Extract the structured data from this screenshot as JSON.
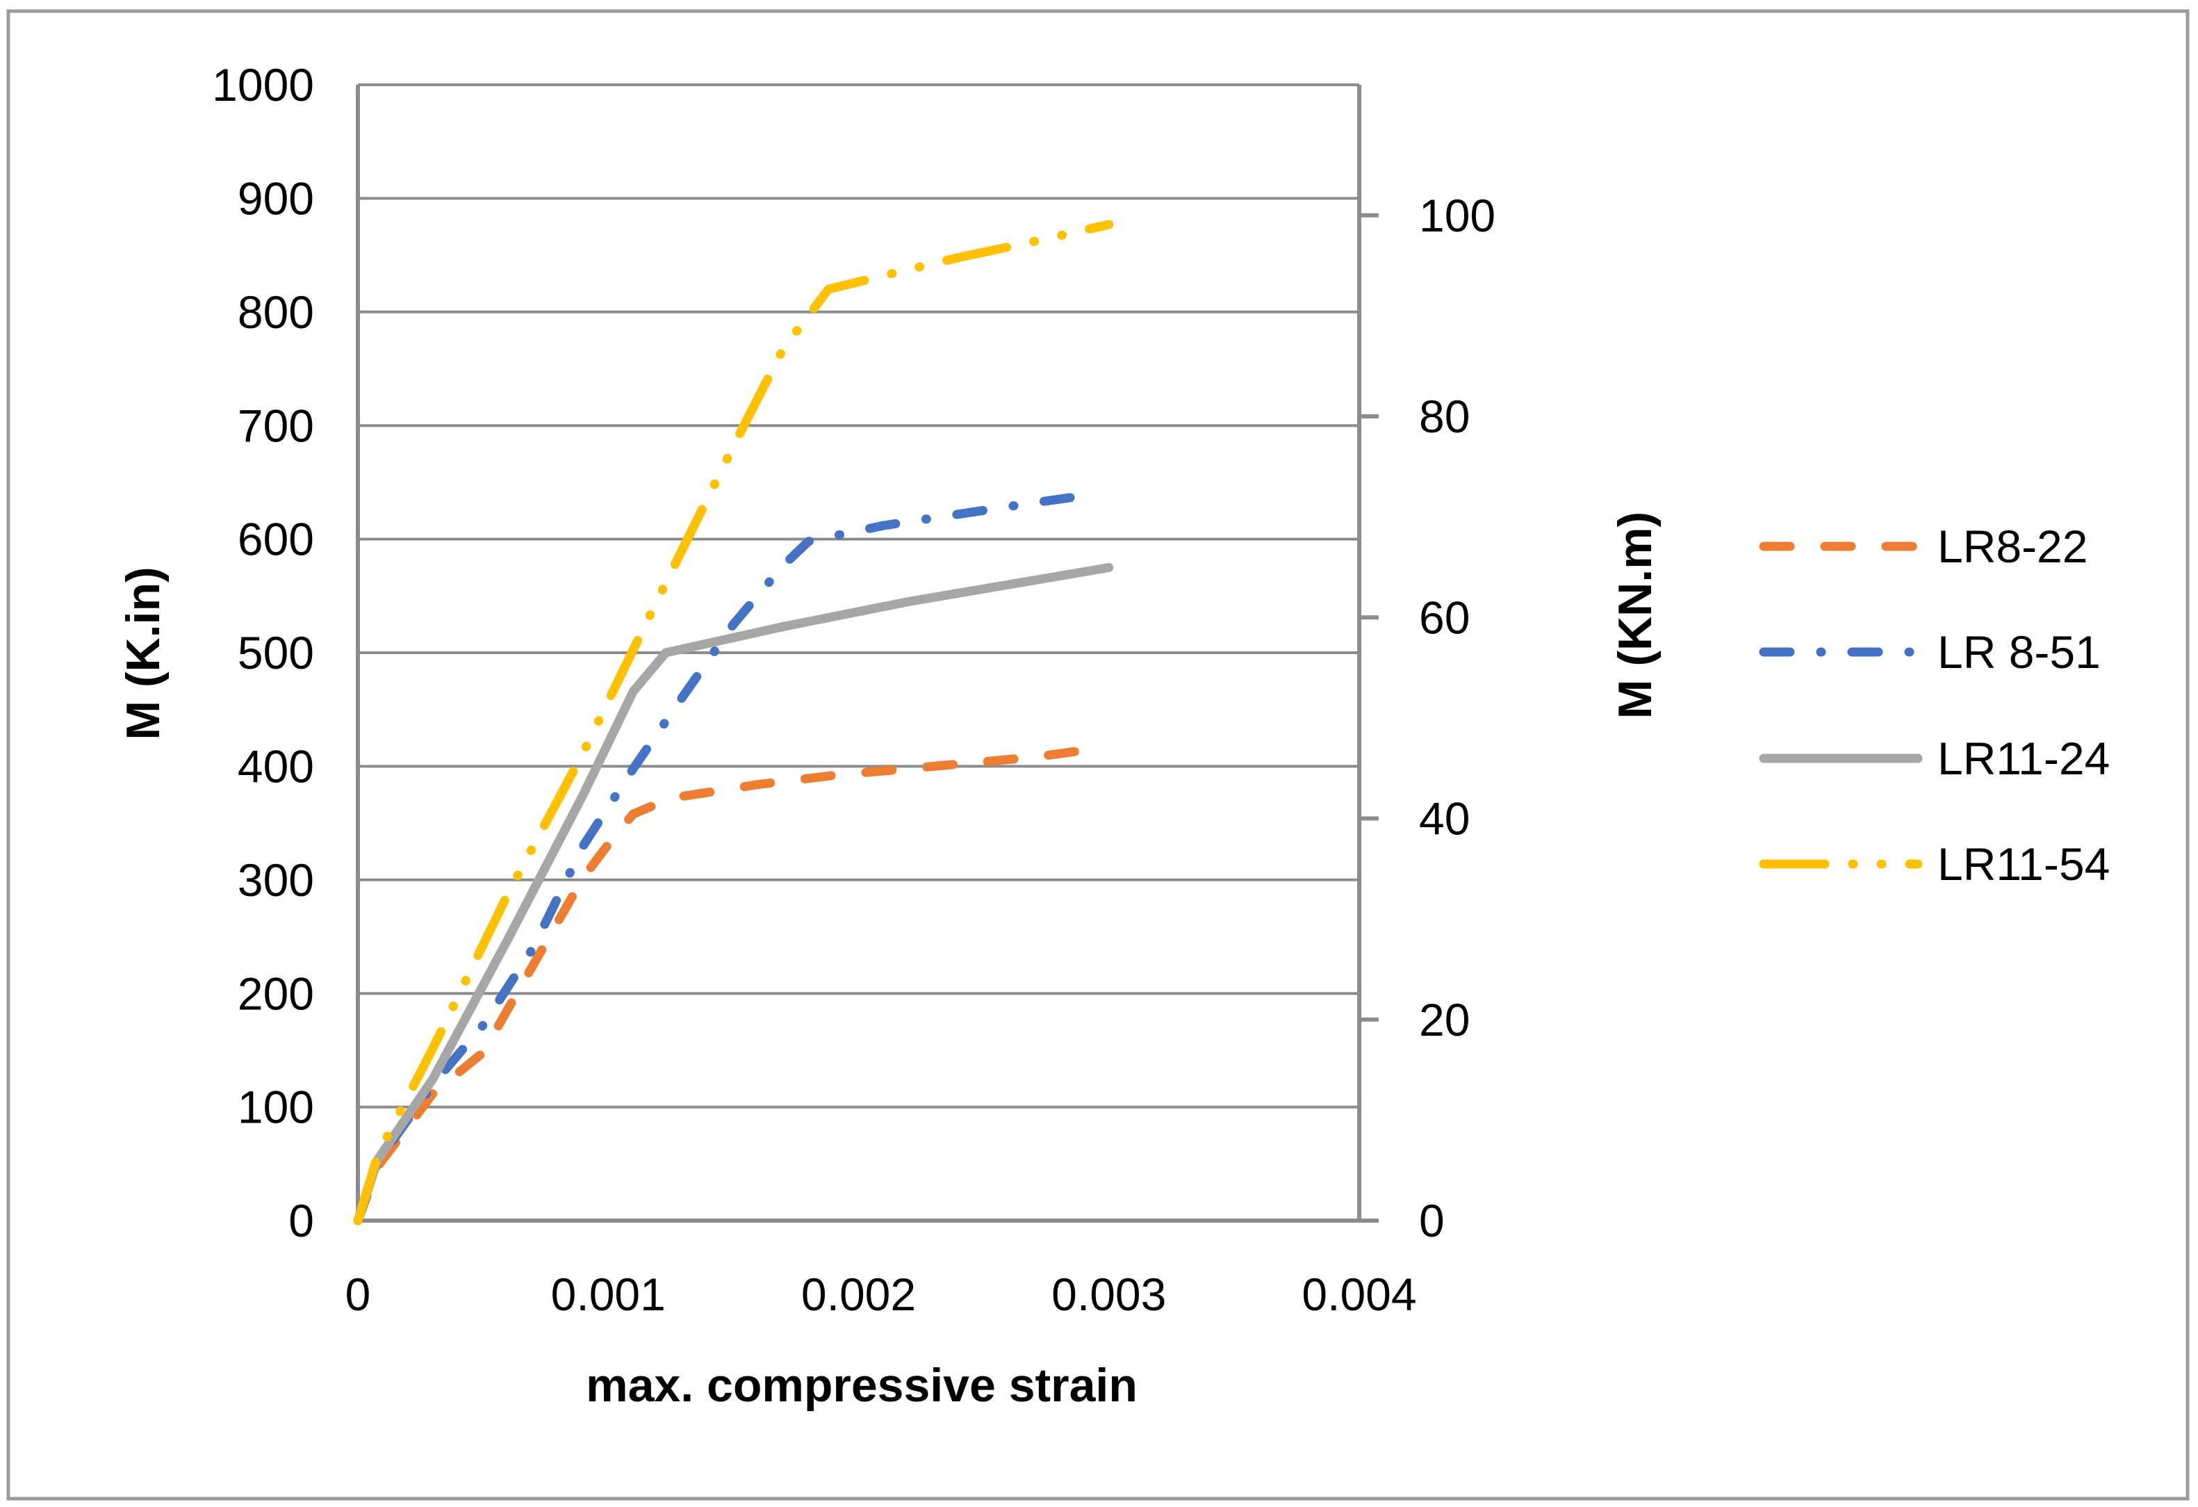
{
  "figure": {
    "background": "#FFFFFF",
    "border_color": "#9B9B9B"
  },
  "chart_data": {
    "type": "line",
    "title": "",
    "xlabel": "max. compressive strain",
    "ylabel_left": "M (K.in)",
    "ylabel_right": "M (KN.m)",
    "xlim": [
      0,
      0.004
    ],
    "ylim_left": [
      0,
      1000
    ],
    "ylim_right": [
      0,
      100
    ],
    "x_ticks": [
      0,
      0.001,
      0.002,
      0.003,
      0.004
    ],
    "y_ticks_left": [
      0,
      100,
      200,
      300,
      400,
      500,
      600,
      700,
      800,
      900,
      1000
    ],
    "y_ticks_right": [
      0,
      20,
      40,
      60,
      80,
      100
    ],
    "kin_per_knm": 8.8507,
    "grid": true,
    "gridline_color": "#8C8C8C",
    "axis_color": "#8C8C8C",
    "legend_position": "right",
    "series": [
      {
        "name": "LR8-22",
        "color": "#ED7D31",
        "style": "dashed",
        "points": [
          [
            0,
            0
          ],
          [
            8e-05,
            48
          ],
          [
            0.0003,
            112
          ],
          [
            0.0005,
            148
          ],
          [
            0.0007,
            225
          ],
          [
            0.0009,
            302
          ],
          [
            0.00103,
            340
          ],
          [
            0.0011,
            358
          ],
          [
            0.00125,
            372
          ],
          [
            0.0016,
            384
          ],
          [
            0.0019,
            392
          ],
          [
            0.0023,
            400
          ],
          [
            0.0027,
            408
          ],
          [
            0.003,
            417
          ]
        ]
      },
      {
        "name": "LR 8-51",
        "color": "#4472C4",
        "style": "dash-dot",
        "points": [
          [
            0,
            0
          ],
          [
            8e-05,
            52
          ],
          [
            0.0003,
            120
          ],
          [
            0.0005,
            172
          ],
          [
            0.0007,
            240
          ],
          [
            0.0009,
            330
          ],
          [
            0.0011,
            398
          ],
          [
            0.0013,
            462
          ],
          [
            0.0015,
            525
          ],
          [
            0.0017,
            577
          ],
          [
            0.0018,
            598
          ],
          [
            0.0021,
            612
          ],
          [
            0.0024,
            622
          ],
          [
            0.0027,
            632
          ],
          [
            0.00296,
            640
          ]
        ]
      },
      {
        "name": "LR11-24",
        "color": "#A6A6A6",
        "style": "solid",
        "points": [
          [
            0,
            0
          ],
          [
            8e-05,
            54
          ],
          [
            0.0003,
            125
          ],
          [
            0.0006,
            248
          ],
          [
            0.0009,
            375
          ],
          [
            0.0011,
            466
          ],
          [
            0.00123,
            500
          ],
          [
            0.0017,
            523
          ],
          [
            0.0022,
            545
          ],
          [
            0.003,
            575
          ]
        ]
      },
      {
        "name": "LR11-54",
        "color": "#FFC000",
        "style": "dash-dot-dot",
        "points": [
          [
            0,
            0
          ],
          [
            8e-05,
            58
          ],
          [
            0.0003,
            152
          ],
          [
            0.0006,
            288
          ],
          [
            0.0009,
            412
          ],
          [
            0.0012,
            548
          ],
          [
            0.0015,
            682
          ],
          [
            0.0017,
            768
          ],
          [
            0.00188,
            820
          ],
          [
            0.0021,
            832
          ],
          [
            0.0024,
            848
          ],
          [
            0.0027,
            862
          ],
          [
            0.003,
            877
          ]
        ]
      }
    ]
  }
}
